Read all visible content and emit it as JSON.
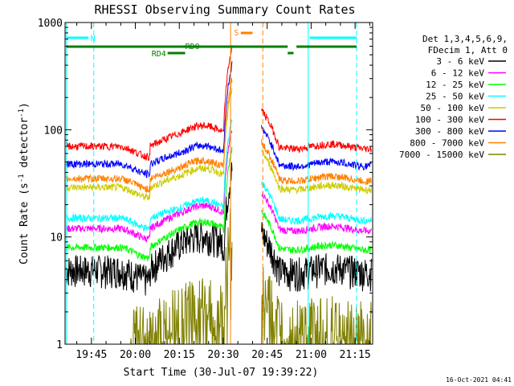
{
  "chart_data": {
    "type": "line",
    "title": "RHESSI Observing Summary Count Rates",
    "xlabel": "Start Time (30-Jul-07 19:39:22)",
    "ylabel_main": "Count Rate (s",
    "ylabel_sup1": "-1",
    "ylabel_mid": " detector",
    "ylabel_sup2": "-1",
    "ylabel_end": ")",
    "y_scale": "log",
    "ylim": [
      1,
      1000
    ],
    "xlim_minutes": [
      -9,
      96
    ],
    "x_ticks": [
      {
        "label": "19:45",
        "minute": 0
      },
      {
        "label": "20:00",
        "minute": 15
      },
      {
        "label": "20:15",
        "minute": 30
      },
      {
        "label": "20:30",
        "minute": 45
      },
      {
        "label": "20:45",
        "minute": 60
      },
      {
        "label": "21:00",
        "minute": 75
      },
      {
        "label": "21:15",
        "minute": 90
      }
    ],
    "y_ticks": [
      {
        "label": "1000",
        "value": 1000
      },
      {
        "label": "100",
        "value": 100
      },
      {
        "label": "10",
        "value": 10
      },
      {
        "label": "1",
        "value": 1
      }
    ],
    "legend_header": [
      "Det 1,3,4,5,6,9,",
      "FDecim 1, Att 0"
    ],
    "legend_placement": "right",
    "series": [
      {
        "name": "3 - 6 keV",
        "color": "#000000",
        "base": 5,
        "rise": 9
      },
      {
        "name": "6 - 12 keV",
        "color": "#ff00ff",
        "base": 12,
        "rise": 17
      },
      {
        "name": "12 - 25 keV",
        "color": "#00ff00",
        "base": 8,
        "rise": 12
      },
      {
        "name": "25 - 50 keV",
        "color": "#00ffff",
        "base": 15,
        "rise": 19
      },
      {
        "name": "50 - 100 keV",
        "color": "#cccc00",
        "base": 29,
        "rise": 38
      },
      {
        "name": "100 - 300 keV",
        "color": "#ff0000",
        "base": 70,
        "rise": 95
      },
      {
        "name": "300 - 800 keV",
        "color": "#0000ff",
        "base": 48,
        "rise": 62
      },
      {
        "name": "800 - 7000 keV",
        "color": "#ff8000",
        "base": 35,
        "rise": 45
      },
      {
        "name": "7000 - 15000 keV",
        "color": "#808000",
        "base": 1.5,
        "rise": 2
      }
    ],
    "annotations": [
      {
        "label": "N",
        "color": "#00ffff"
      },
      {
        "label": "S",
        "color": "#ff8000"
      },
      {
        "label": "RD0",
        "color": "#008000"
      },
      {
        "label": "RD4",
        "color": "#008000"
      }
    ],
    "footer": "16-Oct-2021 04:41"
  },
  "colors": {
    "axis": "#000000",
    "night": "#00ffff",
    "saa": "#ff8000",
    "rd": "#008000"
  }
}
